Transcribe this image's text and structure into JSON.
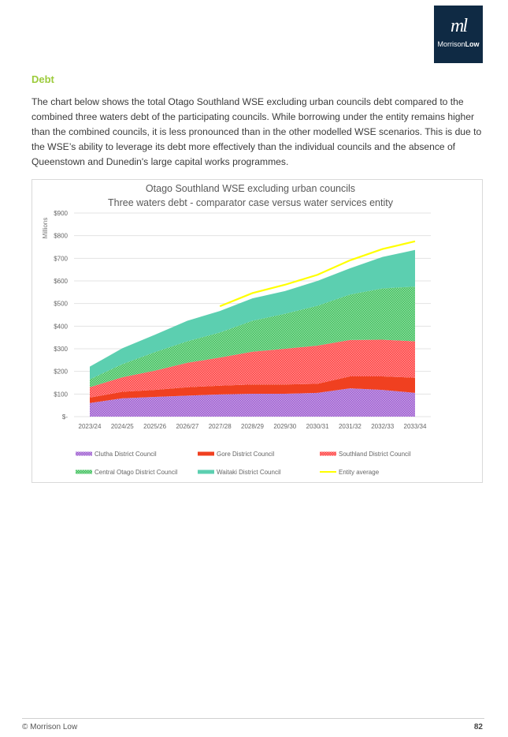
{
  "logo": {
    "mark": "ml",
    "word_a": "Morrison",
    "word_b": "Low"
  },
  "heading": "Debt",
  "paragraph": "The chart below shows the total Otago Southland WSE excluding urban councils debt compared to the combined three waters debt of the participating councils.  While borrowing under the entity remains higher than the combined councils, it is less pronounced than in the other modelled WSE scenarios. This is due to the WSE’s ability to leverage its debt more effectively than the individual councils and the absence of Queenstown and Dunedin's large capital works programmes.",
  "chart_data": {
    "type": "area",
    "stacked": true,
    "title": "Otago Southland WSE excluding urban councils",
    "subtitle": "Three waters debt - comparator case versus water services entity",
    "ylabel": "Millions",
    "xlabel": "",
    "ylim": [
      0,
      900
    ],
    "yticks": [
      0,
      100,
      200,
      300,
      400,
      500,
      600,
      700,
      800,
      900
    ],
    "ytick_labels": [
      "$-",
      "$100",
      "$200",
      "$300",
      "$400",
      "$500",
      "$600",
      "$700",
      "$800",
      "$900"
    ],
    "grid": true,
    "legend_position": "bottom",
    "categories": [
      "2023/24",
      "2024/25",
      "2025/26",
      "2026/27",
      "2027/28",
      "2028/29",
      "2029/30",
      "2030/31",
      "2031/32",
      "2032/33",
      "2033/34"
    ],
    "series": [
      {
        "name": "Clutha District Council",
        "kind": "area",
        "color": "#9b59d0",
        "pattern": "hatched",
        "values": [
          60,
          81,
          87,
          93,
          98,
          101,
          101,
          105,
          125,
          118,
          105
        ]
      },
      {
        "name": "Gore District Council",
        "kind": "area",
        "color": "#f04020",
        "pattern": "solid",
        "values": [
          24,
          29,
          31,
          37,
          39,
          41,
          41,
          40,
          53,
          60,
          67
        ]
      },
      {
        "name": "Southland District Council",
        "kind": "area",
        "color": "#ff3b3b",
        "pattern": "hatched",
        "values": [
          46,
          64,
          85,
          108,
          124,
          145,
          158,
          169,
          161,
          162,
          161
        ]
      },
      {
        "name": "Central Otago District Council",
        "kind": "area",
        "color": "#3cbf5a",
        "pattern": "hatched",
        "values": [
          35,
          58,
          82,
          95,
          111,
          137,
          155,
          176,
          201,
          227,
          242
        ]
      },
      {
        "name": "Waitaki District Council",
        "kind": "area",
        "color": "#5ccfb0",
        "pattern": "solid",
        "values": [
          56,
          70,
          77,
          91,
          95,
          99,
          100,
          110,
          116,
          139,
          162
        ]
      },
      {
        "name": "Entity average",
        "kind": "line",
        "color": "#ffff00",
        "values": [
          null,
          null,
          null,
          null,
          488,
          546,
          583,
          627,
          691,
          741,
          775
        ]
      }
    ]
  },
  "footer": {
    "copyright": "© Morrison Low",
    "page_number": "82"
  }
}
